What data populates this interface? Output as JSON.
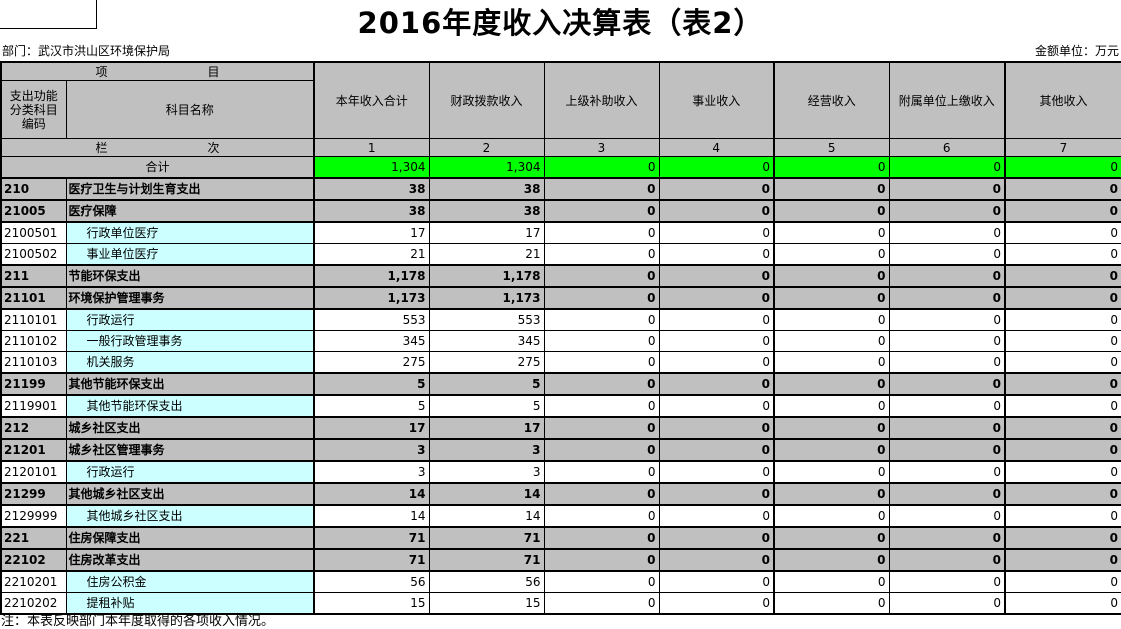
{
  "title": "2016年度收入决算表（表2）",
  "meta": {
    "department": "部门：武汉市洪山区环境保护局",
    "unit_label": "金额单位：万元"
  },
  "header": {
    "project_label": [
      "项",
      "目"
    ],
    "code_header": "支出功能分类科目编码",
    "name_header": "科目名称",
    "value_columns": [
      "本年收入合计",
      "财政拨款收入",
      "上级补助收入",
      "事业收入",
      "经营收入",
      "附属单位上缴收入",
      "其他收入"
    ],
    "rank_label": [
      "栏",
      "次"
    ],
    "column_numbers": [
      "1",
      "2",
      "3",
      "4",
      "5",
      "6",
      "7"
    ]
  },
  "total_row": {
    "label": "合计",
    "values": [
      "1,304",
      "1,304",
      "0",
      "0",
      "0",
      "0",
      "0"
    ]
  },
  "rows": [
    {
      "code": "210",
      "name": "医疗卫生与计划生育支出",
      "level": "section",
      "values": [
        "38",
        "38",
        "0",
        "0",
        "0",
        "0",
        "0"
      ]
    },
    {
      "code": "21005",
      "name": "医疗保障",
      "level": "section",
      "values": [
        "38",
        "38",
        "0",
        "0",
        "0",
        "0",
        "0"
      ]
    },
    {
      "code": "2100501",
      "name": "行政单位医疗",
      "level": "detail",
      "values": [
        "17",
        "17",
        "0",
        "0",
        "0",
        "0",
        "0"
      ]
    },
    {
      "code": "2100502",
      "name": "事业单位医疗",
      "level": "detail",
      "values": [
        "21",
        "21",
        "0",
        "0",
        "0",
        "0",
        "0"
      ]
    },
    {
      "code": "211",
      "name": "节能环保支出",
      "level": "section",
      "values": [
        "1,178",
        "1,178",
        "0",
        "0",
        "0",
        "0",
        "0"
      ]
    },
    {
      "code": "21101",
      "name": "环境保护管理事务",
      "level": "section",
      "values": [
        "1,173",
        "1,173",
        "0",
        "0",
        "0",
        "0",
        "0"
      ]
    },
    {
      "code": "2110101",
      "name": "行政运行",
      "level": "detail",
      "values": [
        "553",
        "553",
        "0",
        "0",
        "0",
        "0",
        "0"
      ]
    },
    {
      "code": "2110102",
      "name": "一般行政管理事务",
      "level": "detail",
      "values": [
        "345",
        "345",
        "0",
        "0",
        "0",
        "0",
        "0"
      ]
    },
    {
      "code": "2110103",
      "name": "机关服务",
      "level": "detail",
      "values": [
        "275",
        "275",
        "0",
        "0",
        "0",
        "0",
        "0"
      ]
    },
    {
      "code": "21199",
      "name": "其他节能环保支出",
      "level": "section",
      "values": [
        "5",
        "5",
        "0",
        "0",
        "0",
        "0",
        "0"
      ]
    },
    {
      "code": "2119901",
      "name": "其他节能环保支出",
      "level": "detail",
      "values": [
        "5",
        "5",
        "0",
        "0",
        "0",
        "0",
        "0"
      ]
    },
    {
      "code": "212",
      "name": "城乡社区支出",
      "level": "section",
      "values": [
        "17",
        "17",
        "0",
        "0",
        "0",
        "0",
        "0"
      ]
    },
    {
      "code": "21201",
      "name": "城乡社区管理事务",
      "level": "section",
      "values": [
        "3",
        "3",
        "0",
        "0",
        "0",
        "0",
        "0"
      ]
    },
    {
      "code": "2120101",
      "name": "行政运行",
      "level": "detail",
      "values": [
        "3",
        "3",
        "0",
        "0",
        "0",
        "0",
        "0"
      ]
    },
    {
      "code": "21299",
      "name": "其他城乡社区支出",
      "level": "section",
      "values": [
        "14",
        "14",
        "0",
        "0",
        "0",
        "0",
        "0"
      ]
    },
    {
      "code": "2129999",
      "name": "其他城乡社区支出",
      "level": "detail",
      "values": [
        "14",
        "14",
        "0",
        "0",
        "0",
        "0",
        "0"
      ]
    },
    {
      "code": "221",
      "name": "住房保障支出",
      "level": "section",
      "values": [
        "71",
        "71",
        "0",
        "0",
        "0",
        "0",
        "0"
      ]
    },
    {
      "code": "22102",
      "name": "住房改革支出",
      "level": "section",
      "values": [
        "71",
        "71",
        "0",
        "0",
        "0",
        "0",
        "0"
      ]
    },
    {
      "code": "2210201",
      "name": "住房公积金",
      "level": "detail",
      "values": [
        "56",
        "56",
        "0",
        "0",
        "0",
        "0",
        "0"
      ]
    },
    {
      "code": "2210202",
      "name": "提租补贴",
      "level": "detail",
      "values": [
        "15",
        "15",
        "0",
        "0",
        "0",
        "0",
        "0"
      ]
    }
  ],
  "note": "注：本表反映部门本年度取得的各项收入情况。",
  "colors": {
    "header_bg": "#C0C0C0",
    "section_row_bg": "#C0C0C0",
    "detail_name_bg": "#CCFFFF",
    "total_value_bg": "#00FF00",
    "border": "#000000"
  }
}
